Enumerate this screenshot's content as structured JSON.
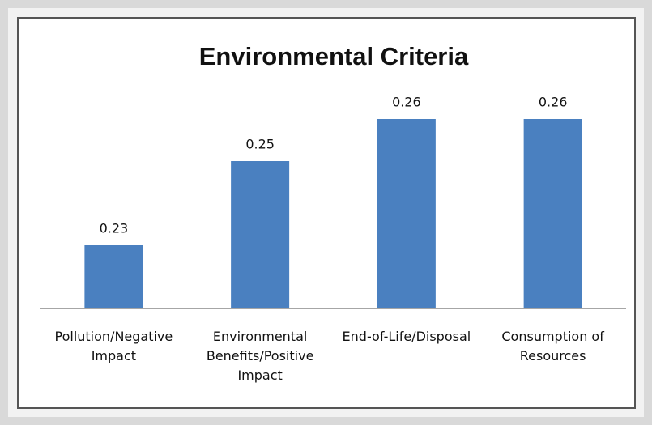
{
  "chart_data": {
    "type": "bar",
    "title": "Environmental Criteria",
    "categories": [
      "Pollution/Negative Impact",
      "Environmental Benefits/Positive Impact",
      "End-of-Life/Disposal",
      "Consumption of Resources"
    ],
    "values": [
      0.23,
      0.25,
      0.26,
      0.26
    ],
    "color": "#4a80c0",
    "ylim": [
      0.215,
      0.265
    ]
  }
}
